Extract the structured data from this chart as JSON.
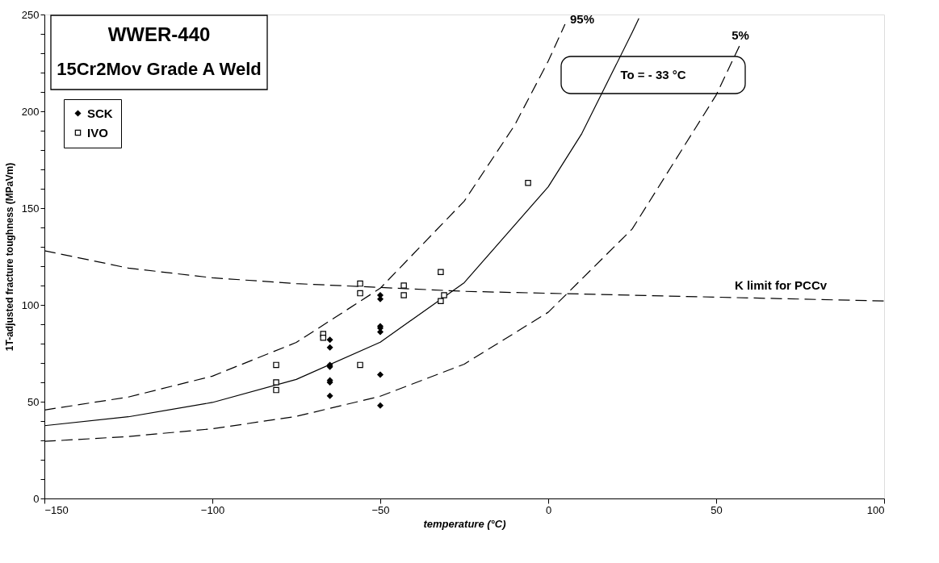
{
  "chart_data": {
    "type": "scatter",
    "title": "WWER-440",
    "subtitle": "15Cr2Mov Grade A Weld",
    "xlabel": "temperature (°C)",
    "ylabel": "1T-adjusted fracture toughness (MPaVm)",
    "xlim": [
      -150,
      100
    ],
    "xticks": [
      -150,
      -100,
      -50,
      0,
      50,
      100
    ],
    "ylim": [
      0,
      250
    ],
    "yticks": [
      0,
      {
        "value": 10,
        "label": null
      },
      {
        "value": 20,
        "label": null
      },
      {
        "value": 30,
        "label": null
      },
      {
        "value": 40,
        "label": null
      },
      50,
      {
        "value": 60,
        "label": null
      },
      {
        "value": 70,
        "label": null
      },
      {
        "value": 80,
        "label": null
      },
      {
        "value": 90,
        "label": null
      },
      100,
      {
        "value": 110,
        "label": null
      },
      {
        "value": 120,
        "label": null
      },
      {
        "value": 130,
        "label": null
      },
      {
        "value": 140,
        "label": null
      },
      150,
      {
        "value": 160,
        "label": null
      },
      {
        "value": 170,
        "label": null
      },
      {
        "value": 180,
        "label": null
      },
      {
        "value": 190,
        "label": null
      },
      200,
      {
        "value": 210,
        "label": null
      },
      {
        "value": 220,
        "label": null
      },
      {
        "value": 230,
        "label": null
      },
      {
        "value": 240,
        "label": null
      },
      250
    ],
    "grid": false,
    "legend": "top left",
    "series": [
      {
        "name": "SCK",
        "marker": "diamond",
        "color": "#000000",
        "x": [
          -50,
          -50,
          -50,
          -50,
          -50,
          -50,
          -50,
          -65,
          -65,
          -65,
          -65,
          -65,
          -65,
          -65
        ],
        "values": [
          105,
          103,
          89,
          88,
          86,
          64,
          48,
          82,
          78,
          69,
          68,
          61,
          60,
          53
        ]
      },
      {
        "name": "IVO",
        "marker": "square",
        "color": "#000000",
        "x": [
          -81,
          -81,
          -81,
          -67,
          -67,
          -56,
          -56,
          -56,
          -43,
          -43,
          -32,
          -32,
          -31,
          -6
        ],
        "values": [
          69,
          60,
          56,
          85,
          83,
          111,
          106,
          69,
          110,
          105,
          117,
          102,
          105,
          163
        ]
      },
      {
        "type": "line",
        "line_style": "solid",
        "color": "#000000",
        "x": [
          -150,
          -125,
          -100,
          -75,
          -50,
          -25,
          0,
          10,
          25,
          27
        ],
        "values": [
          37.6,
          42.2,
          49.6,
          61.5,
          80.7,
          111.5,
          161.0,
          188.5,
          240.7,
          248
        ]
      },
      {
        "type": "line",
        "line_style": "dashed",
        "color": "#000000",
        "x": [
          -150,
          -125,
          -100,
          -75,
          -50,
          -25,
          -10,
          0,
          5
        ],
        "values": [
          45.7,
          52.4,
          63.2,
          80.6,
          108.6,
          153.6,
          192.8,
          225.9,
          245
        ]
      },
      {
        "type": "line",
        "line_style": "dashed",
        "color": "#000000",
        "x": [
          -150,
          -125,
          -100,
          -75,
          -50,
          -25,
          0,
          25,
          50,
          57
        ],
        "values": [
          29.5,
          32.0,
          36.0,
          42.4,
          52.8,
          69.4,
          96.2,
          139.2,
          208.4,
          234
        ]
      },
      {
        "type": "line",
        "line_style": "dashed",
        "color": "#000000",
        "x": [
          -150,
          -125,
          -100,
          -75,
          -50,
          -25,
          0,
          25,
          50,
          75,
          100
        ],
        "values": [
          128,
          119,
          114,
          111,
          109,
          107,
          106,
          105,
          104,
          103,
          102
        ]
      }
    ],
    "annotations": [
      "95%",
      "5%",
      "To = - 33 °C",
      "K limit for PCCv"
    ]
  }
}
